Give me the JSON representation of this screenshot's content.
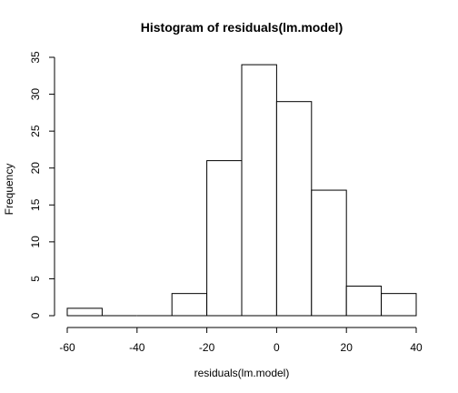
{
  "chart_data": {
    "type": "bar",
    "title": "Histogram of residuals(lm.model)",
    "xlabel": "residuals(lm.model)",
    "ylabel": "Frequency",
    "bins": [
      {
        "start": -60,
        "end": -50,
        "count": 1
      },
      {
        "start": -50,
        "end": -40,
        "count": 0
      },
      {
        "start": -40,
        "end": -30,
        "count": 0
      },
      {
        "start": -30,
        "end": -20,
        "count": 3
      },
      {
        "start": -20,
        "end": -10,
        "count": 21
      },
      {
        "start": -10,
        "end": 0,
        "count": 34
      },
      {
        "start": 0,
        "end": 10,
        "count": 29
      },
      {
        "start": 10,
        "end": 20,
        "count": 17
      },
      {
        "start": 20,
        "end": 30,
        "count": 4
      },
      {
        "start": 30,
        "end": 40,
        "count": 3
      }
    ],
    "xlim": [
      -60,
      40
    ],
    "ylim": [
      0,
      35
    ],
    "x_ticks": [
      "-60",
      "-40",
      "-20",
      "0",
      "20",
      "40"
    ],
    "y_ticks": [
      "0",
      "5",
      "10",
      "15",
      "20",
      "25",
      "30",
      "35"
    ],
    "grid": false,
    "bar_fill": "#ffffff",
    "bar_stroke": "#000000"
  }
}
